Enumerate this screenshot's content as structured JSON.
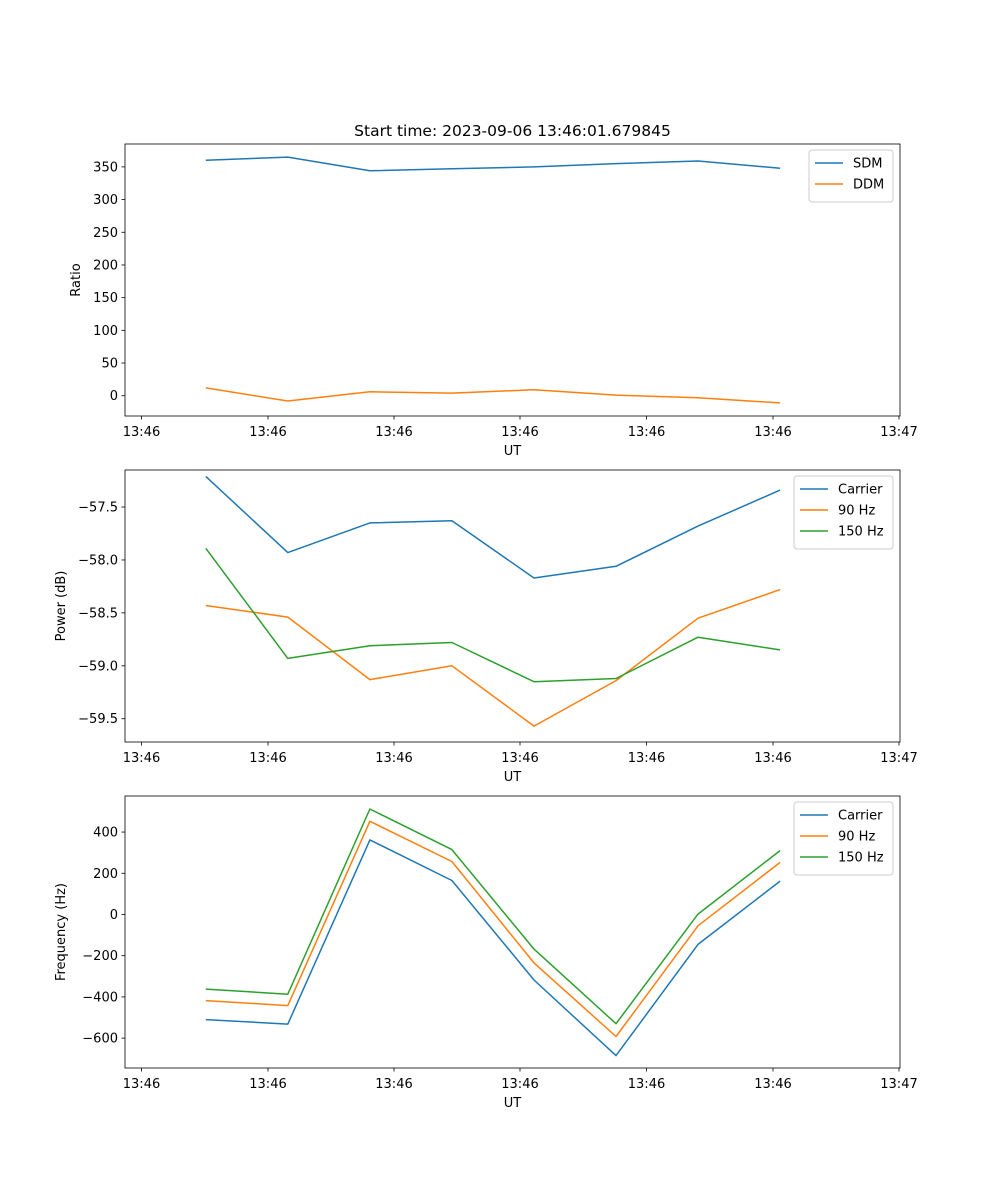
{
  "figure_title": "Start time: 2023-09-06 13:46:01.679845",
  "chart_data": [
    {
      "type": "line",
      "title": "Start time: 2023-09-06 13:46:01.679845",
      "xlabel": "UT",
      "ylabel": "Ratio",
      "xticks": [
        "13:46",
        "13:46",
        "13:46",
        "13:46",
        "13:46",
        "13:46",
        "13:47"
      ],
      "ylim": [
        -31,
        385
      ],
      "yticks": [
        0,
        50,
        100,
        150,
        200,
        250,
        300,
        350
      ],
      "legend_position": "top-right",
      "x": [
        0.5,
        1.15,
        1.8,
        2.45,
        3.1,
        3.75,
        4.4,
        5.05
      ],
      "xlim": [
        -0.14,
        6.0
      ],
      "series": [
        {
          "name": "SDM",
          "color": "#1f77b4",
          "values": [
            360,
            365,
            344,
            347,
            350,
            355,
            359,
            348
          ]
        },
        {
          "name": "DDM",
          "color": "#ff7f0e",
          "values": [
            12,
            -8,
            6,
            4,
            9,
            1,
            -3,
            -11
          ]
        }
      ]
    },
    {
      "type": "line",
      "title": "",
      "xlabel": "UT",
      "ylabel": "Power (dB)",
      "xticks": [
        "13:46",
        "13:46",
        "13:46",
        "13:46",
        "13:46",
        "13:46",
        "13:47"
      ],
      "ylim": [
        -59.72,
        -57.15
      ],
      "yticks": [
        -59.5,
        -59.0,
        -58.5,
        -58.0,
        -57.5
      ],
      "ytick_labels": [
        "−59.5",
        "−59.0",
        "−58.5",
        "−58.0",
        "−57.5"
      ],
      "legend_position": "top-right",
      "x": [
        0.5,
        1.15,
        1.8,
        2.45,
        3.1,
        3.75,
        4.4,
        5.05
      ],
      "xlim": [
        -0.14,
        6.0
      ],
      "series": [
        {
          "name": "Carrier",
          "color": "#1f77b4",
          "values": [
            -57.21,
            -57.93,
            -57.65,
            -57.63,
            -58.17,
            -58.06,
            -57.68,
            -57.34
          ]
        },
        {
          "name": "90 Hz",
          "color": "#ff7f0e",
          "values": [
            -58.43,
            -58.54,
            -59.13,
            -59.0,
            -59.57,
            -59.14,
            -58.55,
            -58.28
          ]
        },
        {
          "name": "150 Hz",
          "color": "#2ca02c",
          "values": [
            -57.89,
            -58.93,
            -58.81,
            -58.78,
            -59.15,
            -59.12,
            -58.73,
            -58.85
          ]
        }
      ]
    },
    {
      "type": "line",
      "title": "",
      "xlabel": "UT",
      "ylabel": "Frequency (Hz)",
      "xticks": [
        "13:46",
        "13:46",
        "13:46",
        "13:46",
        "13:46",
        "13:46",
        "13:47"
      ],
      "ylim": [
        -745,
        575
      ],
      "yticks": [
        -600,
        -400,
        -200,
        0,
        200,
        400
      ],
      "ytick_labels": [
        "−600",
        "−400",
        "−200",
        "0",
        "200",
        "400"
      ],
      "legend_position": "top-right",
      "x": [
        0.5,
        1.15,
        1.8,
        2.45,
        3.1,
        3.75,
        4.4,
        5.05
      ],
      "xlim": [
        -0.14,
        6.0
      ],
      "series": [
        {
          "name": "Carrier",
          "color": "#1f77b4",
          "values": [
            -510,
            -532,
            362,
            165,
            -318,
            -685,
            -145,
            162
          ]
        },
        {
          "name": "90 Hz",
          "color": "#ff7f0e",
          "values": [
            -418,
            -442,
            452,
            257,
            -235,
            -592,
            -55,
            253
          ]
        },
        {
          "name": "150 Hz",
          "color": "#2ca02c",
          "values": [
            -362,
            -387,
            512,
            315,
            -168,
            -530,
            2,
            310
          ]
        }
      ]
    }
  ]
}
